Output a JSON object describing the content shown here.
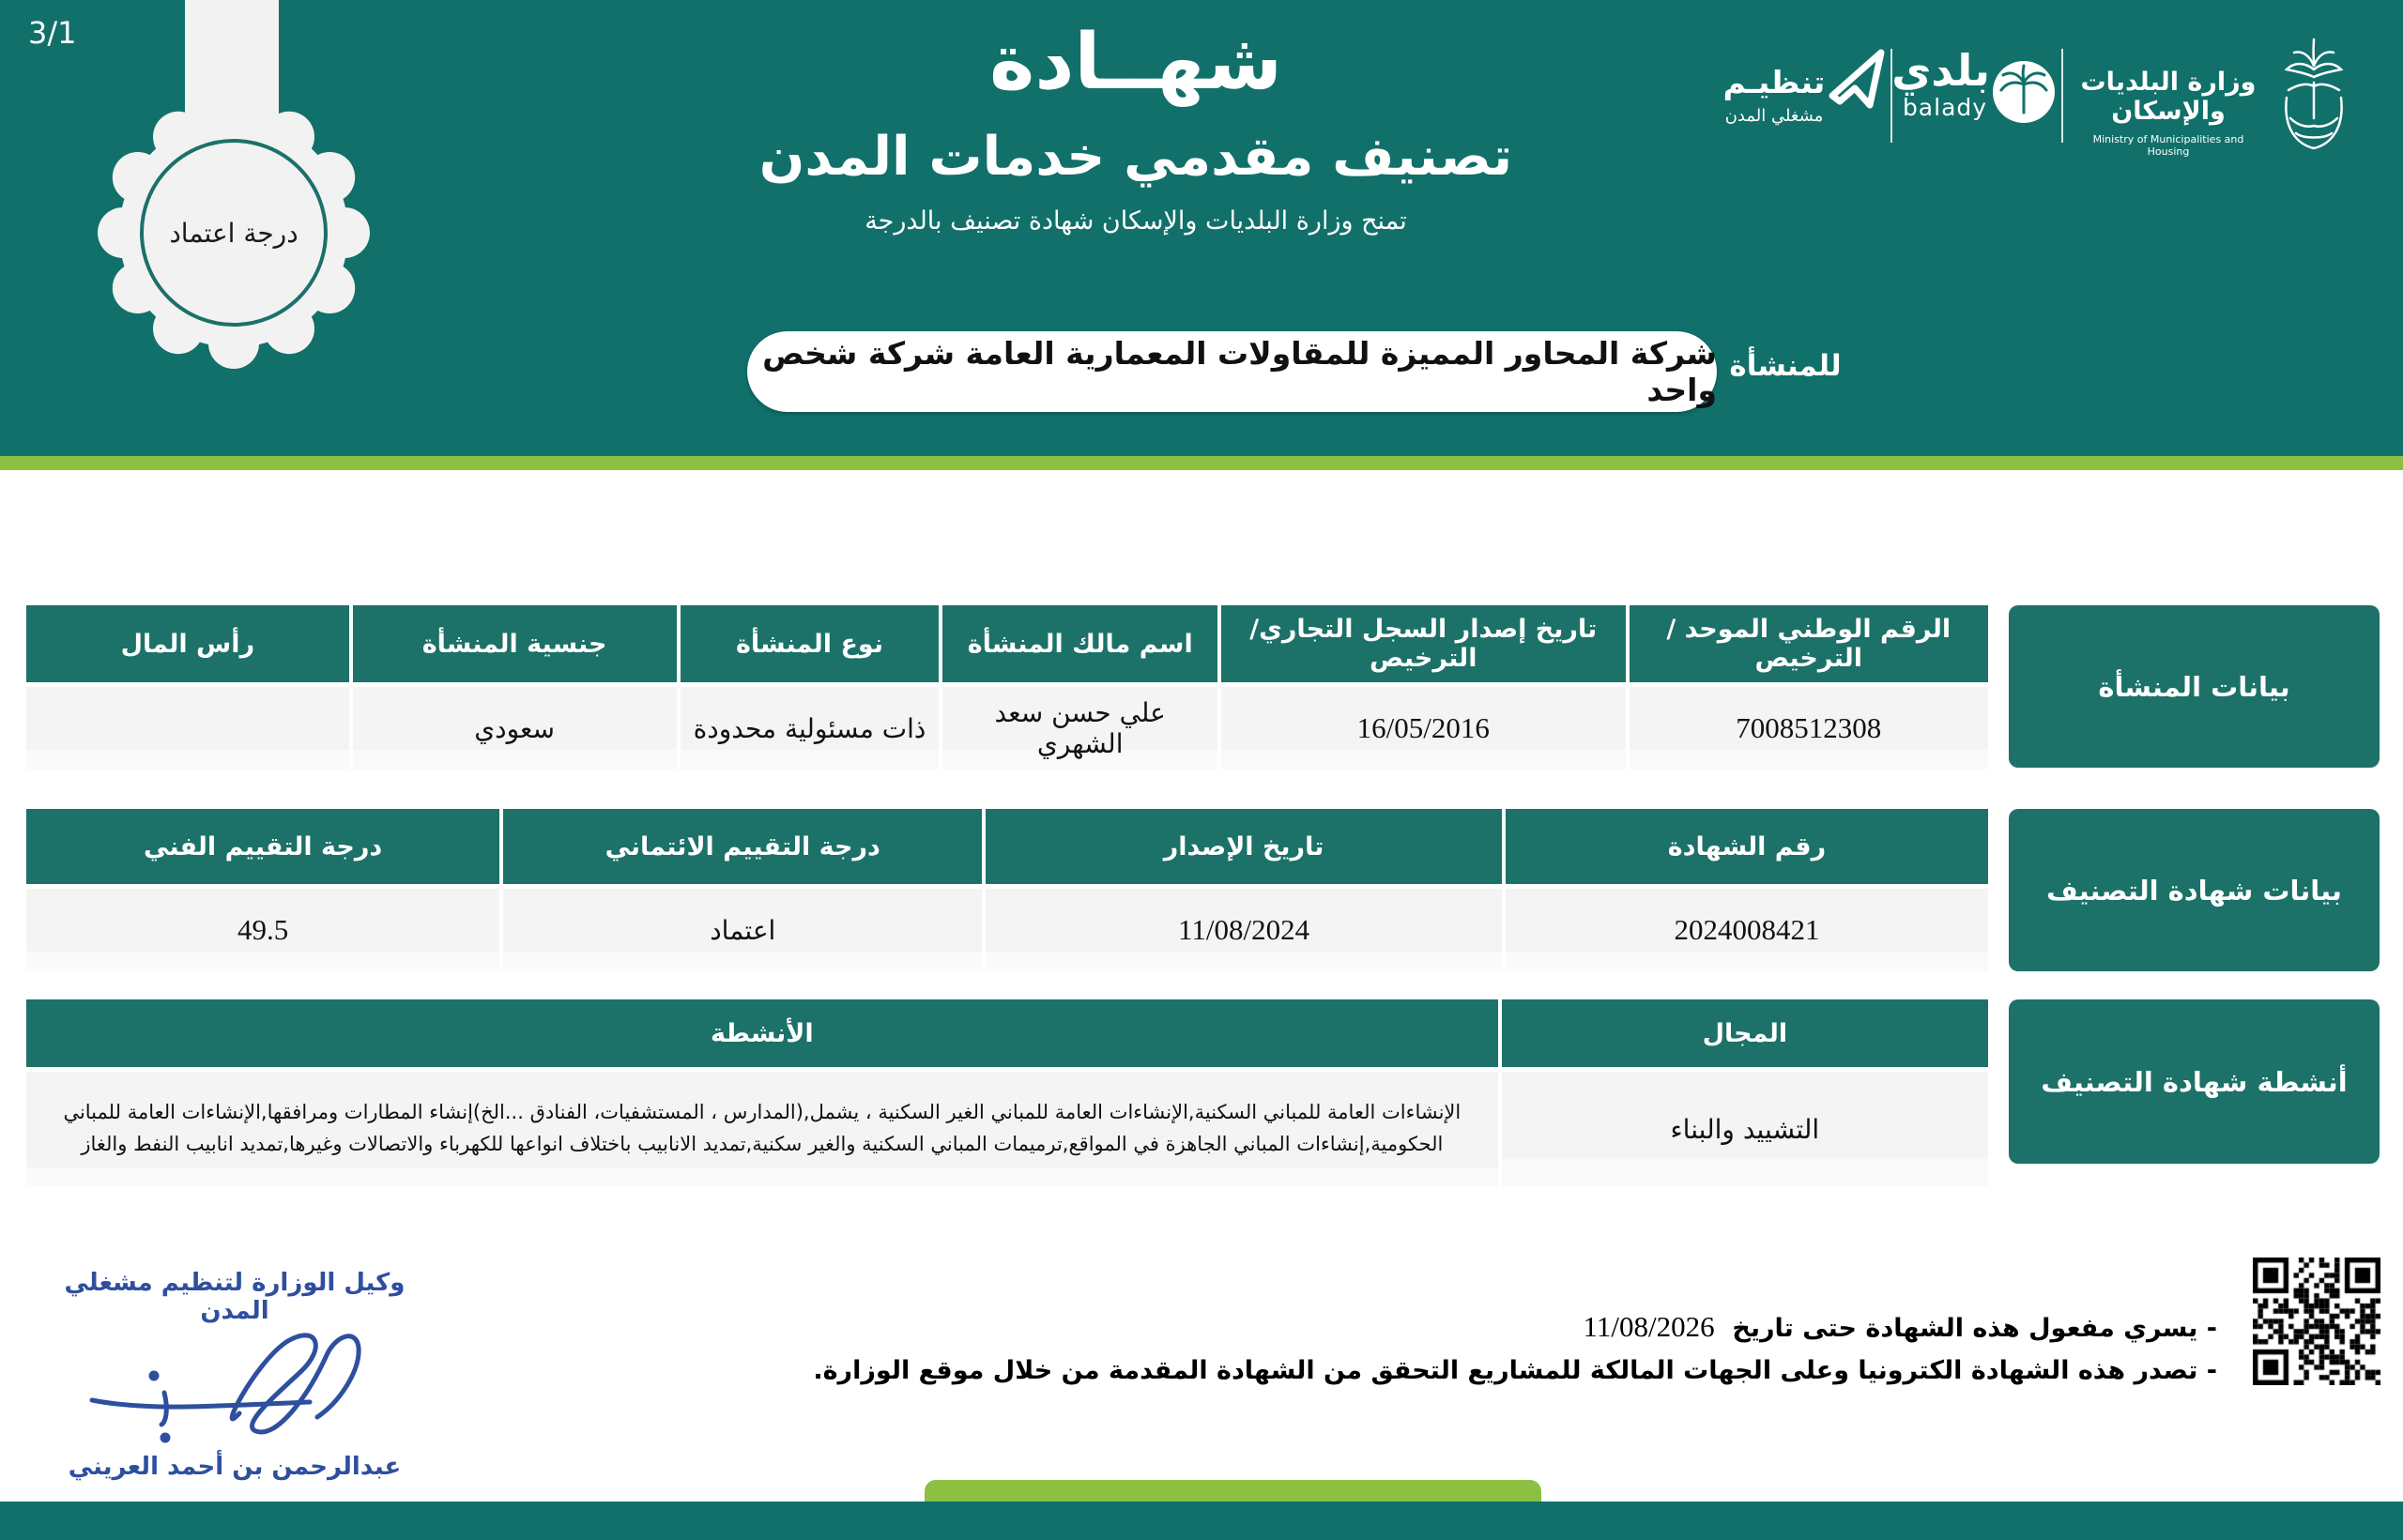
{
  "page": {
    "number": "3/1"
  },
  "colors": {
    "teal": "#11706A",
    "table_teal": "#1C7168",
    "lime": "#8CC043",
    "row_bg": "#F4F4F4",
    "signature_blue": "#2E4F9E"
  },
  "header": {
    "title": "شهــادة",
    "subtitle": "تصنيف مقدمي خدمات المدن",
    "tagline": "تمنح وزارة البلديات والإسكان شهادة تصنيف بالدرجة",
    "seal_label": "درجة اعتماد",
    "entity_field_label": "للمنشأة",
    "entity_name": "شركة المحاور المميزة للمقاولات المعمارية العامة شركة شخص واحد"
  },
  "logos": {
    "tanzim_title": "تنظيـم",
    "tanzim_subtitle": "مشغلي المدن",
    "balady_ar": "بلدي",
    "balady_en": "balady",
    "ministry_ar": "وزارة البلديات والإسكان",
    "ministry_en": "Ministry of Municipalities and Housing"
  },
  "tables": {
    "establishment": {
      "section_label": "بيانات المنشأة",
      "headers": [
        "الرقم الوطني الموحد /الترخيص",
        "تاريخ إصدار السجل التجاري/ الترخيص",
        "اسم مالك المنشأة",
        "نوع المنشأة",
        "جنسية المنشأة",
        "رأس المال"
      ],
      "values": [
        "7008512308",
        "16/05/2016",
        "علي حسن سعد الشهري",
        "ذات مسئولية محدودة",
        "سعودي",
        ""
      ]
    },
    "certificate": {
      "section_label": "بيانات شهادة التصنيف",
      "headers": [
        "رقم الشهادة",
        "تاريخ الإصدار",
        "درجة التقييم الائتماني",
        "درجة التقييم الفني"
      ],
      "values": [
        "2024008421",
        "11/08/2024",
        "اعتماد",
        "49.5"
      ]
    },
    "activities": {
      "section_label": "أنشطة شهادة التصنيف",
      "headers": [
        "المجال",
        "الأنشطة"
      ],
      "values": [
        "التشييد والبناء",
        "الإنشاءات العامة للمباني السكنية,الإنشاءات العامة للمباني الغير السكنية ، يشمل,(المدارس ، المستشفيات، الفنادق ...الخ)إنشاء المطارات ومرافقها,الإنشاءات العامة للمباني الحكومية,إنشاءات المباني الجاهزة في المواقع,ترميمات المباني السكنية والغير سكنية,تمديد الانابيب باختلاف انواعها للكهرباء والاتصالات وغيرها,تمديد انابيب النفط والغاز"
      ]
    }
  },
  "footer": {
    "signature_title": "وكيل الوزارة لتنظيم مشغلي المدن",
    "signature_name": "عبدالرحمن بن أحمد العريني",
    "validity_note": "- يسري مفعول هذه الشهادة حتى تاريخ",
    "validity_date": "11/08/2026",
    "electronic_note": "- تصدر هذه الشهادة الكترونيا وعلى الجهات المالكة للمشاريع التحقق من الشهادة المقدمة من خلال موقع الوزارة."
  }
}
